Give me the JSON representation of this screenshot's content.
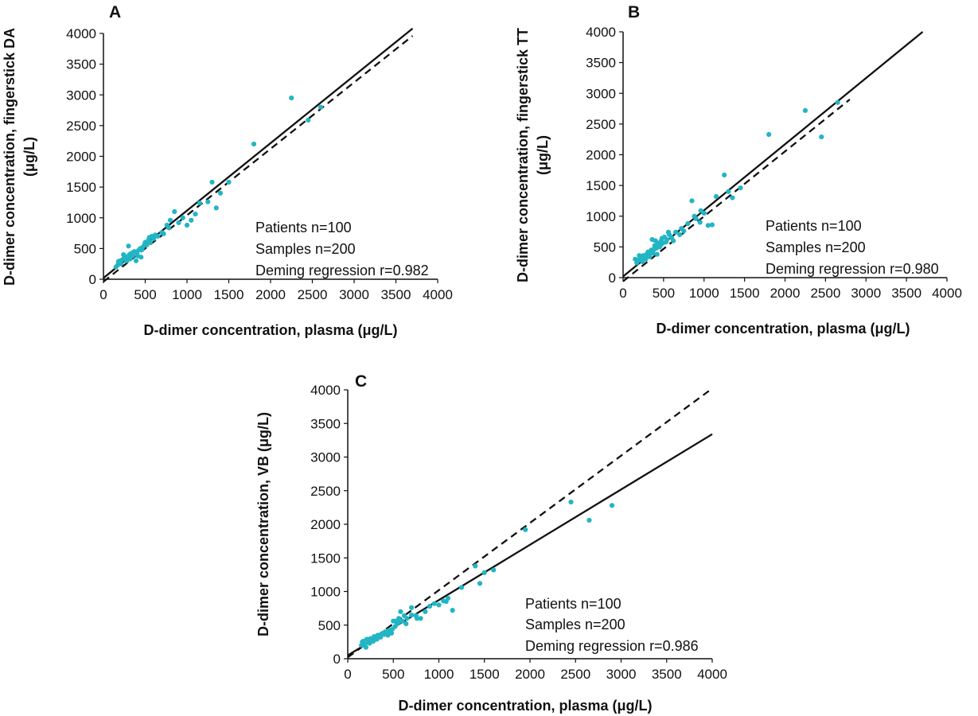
{
  "chart_data": [
    {
      "type": "scatter",
      "panel": "A",
      "xlabel": "D-dimer concentration, plasma (μg/L)",
      "ylabel": "D-dimer concentration, fingerstick DA (μg/L)",
      "xlim": [
        0,
        4000
      ],
      "ylim": [
        0,
        4000
      ],
      "x_ticks": [
        0,
        500,
        1000,
        1500,
        2000,
        2500,
        3000,
        3500,
        4000
      ],
      "y_ticks": [
        0,
        500,
        1000,
        1500,
        2000,
        2500,
        3000,
        3500,
        4000
      ],
      "annotations": [
        "Patients n=100",
        "Samples n=200",
        "Deming regression r=0.982"
      ],
      "regression_line": {
        "style": "solid",
        "x": [
          0,
          3700
        ],
        "y": [
          20,
          4080
        ]
      },
      "identity_line": {
        "style": "dashed",
        "x": [
          0,
          3700
        ],
        "y": [
          -40,
          3960
        ]
      },
      "series": [
        {
          "points": [
            [
              150,
              200
            ],
            [
              170,
              230
            ],
            [
              190,
              260
            ],
            [
              200,
              300
            ],
            [
              210,
              250
            ],
            [
              230,
              320
            ],
            [
              250,
              380
            ],
            [
              260,
              340
            ],
            [
              280,
              300
            ],
            [
              300,
              360
            ],
            [
              310,
              400
            ],
            [
              330,
              420
            ],
            [
              350,
              380
            ],
            [
              370,
              450
            ],
            [
              390,
              300
            ],
            [
              400,
              420
            ],
            [
              420,
              470
            ],
            [
              440,
              500
            ],
            [
              450,
              360
            ],
            [
              470,
              520
            ],
            [
              490,
              560
            ],
            [
              500,
              600
            ],
            [
              520,
              560
            ],
            [
              540,
              640
            ],
            [
              560,
              600
            ],
            [
              580,
              700
            ],
            [
              600,
              660
            ],
            [
              650,
              700
            ],
            [
              700,
              760
            ],
            [
              720,
              740
            ],
            [
              760,
              880
            ],
            [
              800,
              960
            ],
            [
              850,
              1100
            ],
            [
              900,
              920
            ],
            [
              950,
              1000
            ],
            [
              1000,
              880
            ],
            [
              1050,
              960
            ],
            [
              1100,
              1060
            ],
            [
              1250,
              1260
            ],
            [
              1300,
              1580
            ],
            [
              1350,
              1160
            ],
            [
              1400,
              1400
            ],
            [
              1500,
              1580
            ],
            [
              1800,
              2200
            ],
            [
              2250,
              2950
            ],
            [
              2450,
              2590
            ],
            [
              2600,
              2800
            ],
            [
              180,
              290
            ],
            [
              240,
              400
            ],
            [
              270,
              360
            ],
            [
              320,
              330
            ],
            [
              360,
              440
            ],
            [
              410,
              380
            ],
            [
              460,
              480
            ],
            [
              510,
              600
            ],
            [
              550,
              680
            ],
            [
              620,
              720
            ],
            [
              780,
              840
            ],
            [
              1150,
              1240
            ],
            [
              300,
              540
            ]
          ]
        }
      ]
    },
    {
      "type": "scatter",
      "panel": "B",
      "xlabel": "D-dimer concentration, plasma (μg/L)",
      "ylabel": "D-dimer concentration, fingerstick TT (μg/L)",
      "xlim": [
        0,
        4000
      ],
      "ylim": [
        0,
        4000
      ],
      "x_ticks": [
        0,
        500,
        1000,
        1500,
        2000,
        2500,
        3000,
        3500,
        4000
      ],
      "y_ticks": [
        0,
        500,
        1000,
        1500,
        2000,
        2500,
        3000,
        3500,
        4000
      ],
      "annotations": [
        "Patients n=100",
        "Samples n=200",
        "Deming regression r=0.980"
      ],
      "regression_line": {
        "style": "solid",
        "x": [
          0,
          3700
        ],
        "y": [
          20,
          4000
        ]
      },
      "identity_line": {
        "style": "dashed",
        "x": [
          0,
          2800
        ],
        "y": [
          -60,
          2900
        ]
      },
      "series": [
        {
          "points": [
            [
              150,
              300
            ],
            [
              170,
              240
            ],
            [
              190,
              280
            ],
            [
              210,
              330
            ],
            [
              230,
              300
            ],
            [
              250,
              360
            ],
            [
              270,
              340
            ],
            [
              290,
              380
            ],
            [
              310,
              420
            ],
            [
              330,
              340
            ],
            [
              350,
              450
            ],
            [
              370,
              400
            ],
            [
              390,
              520
            ],
            [
              410,
              480
            ],
            [
              430,
              560
            ],
            [
              450,
              500
            ],
            [
              470,
              600
            ],
            [
              490,
              560
            ],
            [
              510,
              660
            ],
            [
              540,
              620
            ],
            [
              570,
              700
            ],
            [
              600,
              650
            ],
            [
              650,
              740
            ],
            [
              700,
              700
            ],
            [
              750,
              760
            ],
            [
              800,
              880
            ],
            [
              850,
              1250
            ],
            [
              900,
              960
            ],
            [
              950,
              900
            ],
            [
              1000,
              1050
            ],
            [
              1050,
              850
            ],
            [
              1100,
              860
            ],
            [
              1150,
              1320
            ],
            [
              1250,
              1670
            ],
            [
              1300,
              1400
            ],
            [
              1350,
              1300
            ],
            [
              1450,
              1460
            ],
            [
              1800,
              2330
            ],
            [
              2250,
              2720
            ],
            [
              2450,
              2290
            ],
            [
              2650,
              2850
            ],
            [
              200,
              360
            ],
            [
              280,
              300
            ],
            [
              360,
              620
            ],
            [
              420,
              380
            ],
            [
              480,
              640
            ],
            [
              560,
              740
            ],
            [
              620,
              600
            ],
            [
              720,
              800
            ],
            [
              880,
              1000
            ],
            [
              960,
              1090
            ],
            [
              320,
              380
            ],
            [
              380,
              460
            ],
            [
              460,
              520
            ],
            [
              530,
              580
            ],
            [
              240,
              260
            ],
            [
              180,
              270
            ],
            [
              400,
              600
            ]
          ]
        }
      ]
    },
    {
      "type": "scatter",
      "panel": "C",
      "xlabel": "D-dimer concentration, plasma (μg/L)",
      "ylabel": "D-dimer concentration, VB (μg/L)",
      "xlim": [
        0,
        4000
      ],
      "ylim": [
        0,
        4000
      ],
      "x_ticks": [
        0,
        500,
        1000,
        1500,
        2000,
        2500,
        3000,
        3500,
        4000
      ],
      "y_ticks": [
        0,
        500,
        1000,
        1500,
        2000,
        2500,
        3000,
        3500,
        4000
      ],
      "annotations": [
        "Patients n=100",
        "Samples n=200",
        "Deming regression r=0.986"
      ],
      "regression_line": {
        "style": "solid",
        "x": [
          0,
          4000
        ],
        "y": [
          50,
          3340
        ]
      },
      "identity_line": {
        "style": "dashed",
        "x": [
          0,
          4000
        ],
        "y": [
          20,
          4020
        ]
      },
      "series": [
        {
          "points": [
            [
              150,
              200
            ],
            [
              170,
              260
            ],
            [
              190,
              220
            ],
            [
              210,
              290
            ],
            [
              230,
              250
            ],
            [
              250,
              300
            ],
            [
              270,
              280
            ],
            [
              290,
              330
            ],
            [
              310,
              310
            ],
            [
              330,
              350
            ],
            [
              350,
              330
            ],
            [
              370,
              360
            ],
            [
              390,
              380
            ],
            [
              410,
              400
            ],
            [
              430,
              380
            ],
            [
              450,
              420
            ],
            [
              470,
              400
            ],
            [
              490,
              440
            ],
            [
              500,
              560
            ],
            [
              520,
              480
            ],
            [
              540,
              520
            ],
            [
              560,
              600
            ],
            [
              580,
              700
            ],
            [
              600,
              560
            ],
            [
              620,
              640
            ],
            [
              650,
              600
            ],
            [
              700,
              650
            ],
            [
              750,
              640
            ],
            [
              800,
              600
            ],
            [
              850,
              700
            ],
            [
              900,
              780
            ],
            [
              950,
              820
            ],
            [
              1000,
              800
            ],
            [
              1050,
              860
            ],
            [
              1100,
              900
            ],
            [
              1150,
              720
            ],
            [
              1250,
              1060
            ],
            [
              1400,
              1380
            ],
            [
              1450,
              1120
            ],
            [
              1500,
              1280
            ],
            [
              1600,
              1320
            ],
            [
              1950,
              1920
            ],
            [
              2450,
              2330
            ],
            [
              2650,
              2060
            ],
            [
              2900,
              2280
            ],
            [
              200,
              170
            ],
            [
              240,
              230
            ],
            [
              280,
              260
            ],
            [
              320,
              290
            ],
            [
              360,
              320
            ],
            [
              400,
              360
            ],
            [
              440,
              350
            ],
            [
              480,
              380
            ],
            [
              520,
              560
            ],
            [
              560,
              540
            ],
            [
              640,
              520
            ],
            [
              700,
              760
            ],
            [
              760,
              600
            ],
            [
              1080,
              850
            ],
            [
              160,
              250
            ]
          ]
        }
      ]
    }
  ]
}
